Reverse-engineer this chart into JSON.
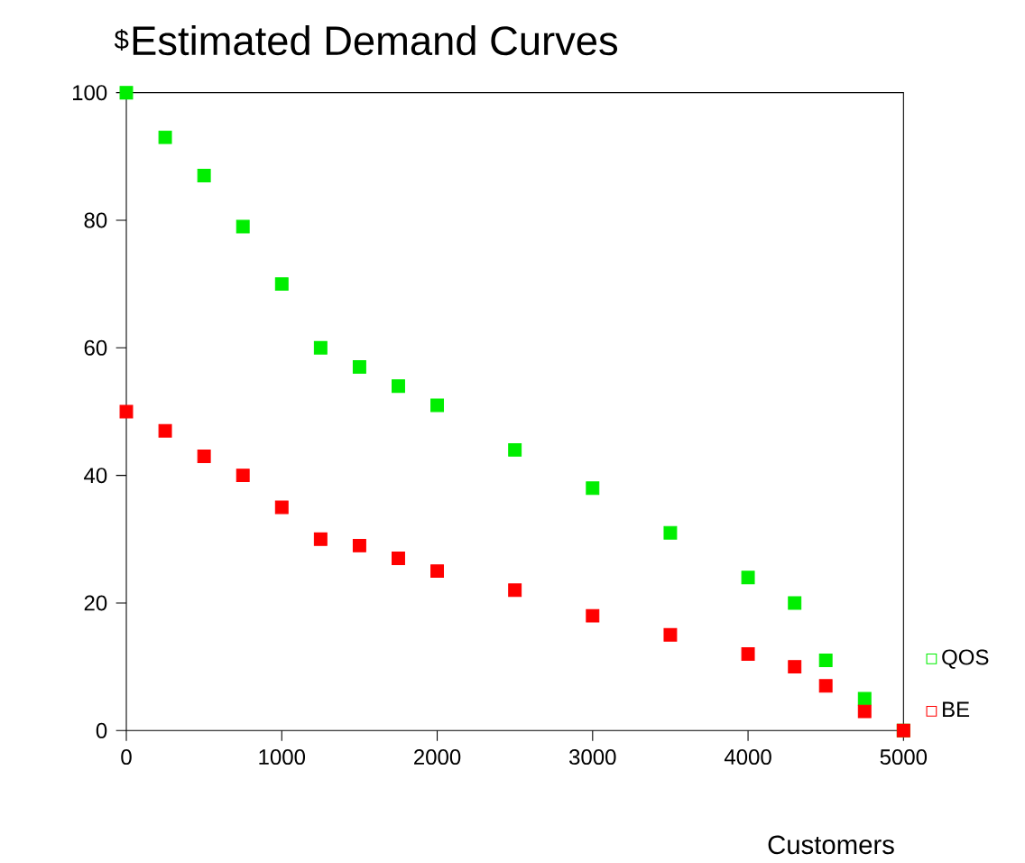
{
  "chart_data": {
    "type": "scatter",
    "title": "Estimated Demand Curves",
    "xlabel": "Customers",
    "ylabel": "$",
    "xlim": [
      0,
      5000
    ],
    "xticks": [
      0,
      1000,
      2000,
      3000,
      4000,
      5000
    ],
    "ylim": [
      0,
      100
    ],
    "yticks": [
      0,
      20,
      40,
      60,
      80,
      100
    ],
    "marker": "square",
    "legend": "bottom right",
    "grid": false,
    "series": [
      {
        "name": "QOS",
        "color": "#00ee00",
        "x": [
          0,
          250,
          500,
          750,
          1000,
          1250,
          1500,
          1750,
          2000,
          2500,
          3000,
          3500,
          4000,
          4300,
          4500,
          4750,
          5000
        ],
        "values": [
          100,
          93,
          87,
          79,
          70,
          60,
          57,
          54,
          51,
          44,
          38,
          31,
          24,
          20,
          11,
          5,
          0
        ]
      },
      {
        "name": "BE",
        "color": "#ff0000",
        "x": [
          0,
          250,
          500,
          750,
          1000,
          1250,
          1500,
          1750,
          2000,
          2500,
          3000,
          3500,
          4000,
          4300,
          4500,
          4750,
          5000
        ],
        "values": [
          50,
          47,
          43,
          40,
          35,
          30,
          29,
          27,
          25,
          22,
          18,
          15,
          12,
          10,
          7,
          3,
          0
        ]
      }
    ]
  }
}
